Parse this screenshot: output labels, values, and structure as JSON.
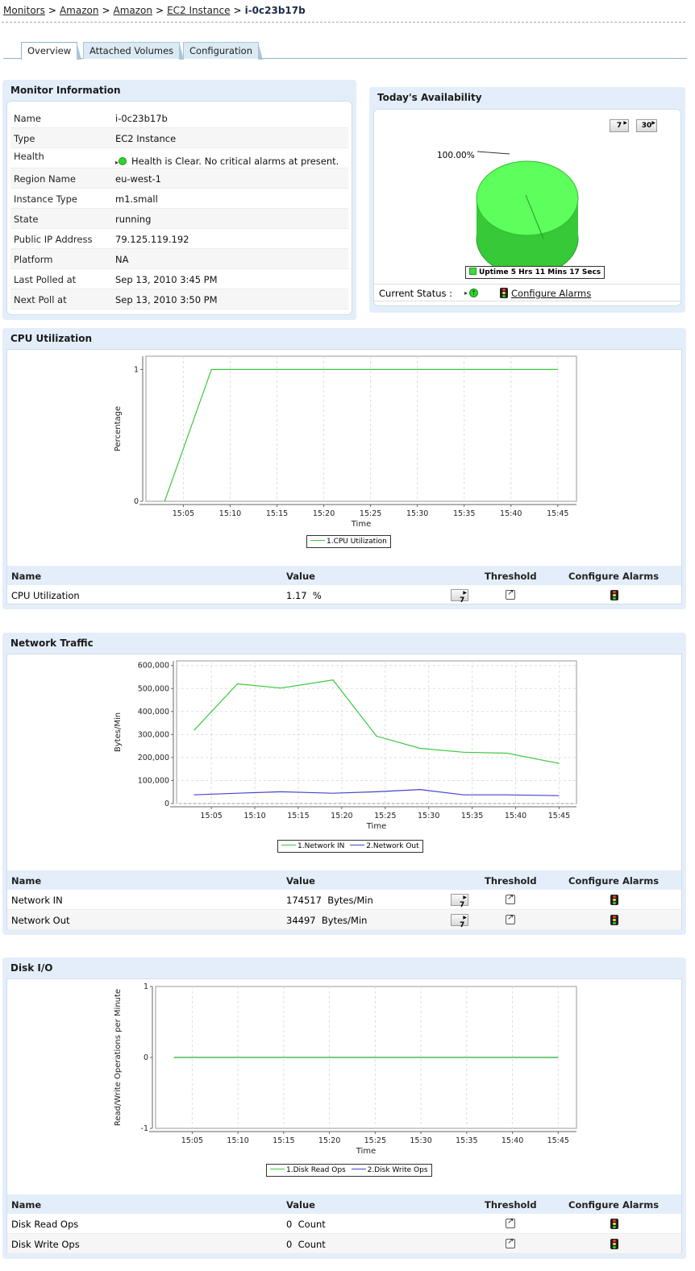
{
  "breadcrumb": {
    "items": [
      "Monitors",
      "Amazon",
      "Amazon",
      "EC2 Instance"
    ],
    "current": "i-0c23b17b",
    "separator": ">"
  },
  "tabs": [
    "Overview",
    "Attached Volumes",
    "Configuration"
  ],
  "monitor_info": {
    "title": "Monitor Information",
    "rows": [
      {
        "key": "Name",
        "value": "i-0c23b17b"
      },
      {
        "key": "Type",
        "value": "EC2 Instance"
      },
      {
        "key": "Health",
        "value": "Health is Clear. No critical alarms at present."
      },
      {
        "key": "Region Name",
        "value": "eu-west-1"
      },
      {
        "key": "Instance Type",
        "value": "m1.small"
      },
      {
        "key": "State",
        "value": "running"
      },
      {
        "key": "Public IP Address",
        "value": "79.125.119.192"
      },
      {
        "key": "Platform",
        "value": "NA"
      },
      {
        "key": "Last Polled at",
        "value": "Sep 13, 2010 3:45 PM"
      },
      {
        "key": "Next Poll at",
        "value": "Sep 13, 2010 3:50 PM"
      }
    ]
  },
  "availability": {
    "title": "Today's Availability",
    "btn_7": "7",
    "btn_30": "30",
    "pie_label": "100.00%",
    "uptime_legend": "Uptime 5 Hrs 11 Mins 17 Secs",
    "current_status_label": "Current Status :",
    "configure_alarms": "Configure Alarms",
    "pie_color": "#5cff5c"
  },
  "sections": {
    "cpu": {
      "title": "CPU Utilization",
      "ylabel": "Percentage",
      "xlabel": "Time",
      "legend": [
        "1.CPU Utilization"
      ],
      "table_headers": [
        "Name",
        "Value",
        "Threshold",
        "Configure Alarms"
      ],
      "rows": [
        {
          "name": "CPU Utilization",
          "value": "1.17",
          "unit": "%",
          "btn": "7"
        }
      ]
    },
    "network": {
      "title": "Network Traffic",
      "ylabel": "Bytes/Min",
      "xlabel": "Time",
      "legend": [
        "1.Network IN",
        "2.Network Out"
      ],
      "table_headers": [
        "Name",
        "Value",
        "Threshold",
        "Configure Alarms"
      ],
      "rows": [
        {
          "name": "Network IN",
          "value": "174517",
          "unit": "Bytes/Min",
          "btn": "7"
        },
        {
          "name": "Network Out",
          "value": "34497",
          "unit": "Bytes/Min",
          "btn": "7"
        }
      ]
    },
    "disk": {
      "title": "Disk I/O",
      "ylabel": "Read/Write Operations per Minute",
      "xlabel": "Time",
      "legend": [
        "1.Disk Read Ops",
        "2.Disk Write Ops"
      ],
      "table_headers": [
        "Name",
        "Value",
        "Threshold",
        "Configure Alarms"
      ],
      "rows": [
        {
          "name": "Disk Read Ops",
          "value": "0",
          "unit": "Count"
        },
        {
          "name": "Disk Write Ops",
          "value": "0",
          "unit": "Count"
        }
      ]
    }
  },
  "chart_data": [
    {
      "type": "pie",
      "title": "",
      "slices": [
        {
          "label": "Uptime",
          "value": 100.0,
          "color": "#5cff5c"
        }
      ]
    },
    {
      "type": "line",
      "xlabel": "Time",
      "ylabel": "Percentage",
      "x_ticks": [
        "15:05",
        "15:10",
        "15:15",
        "15:20",
        "15:25",
        "15:30",
        "15:35",
        "15:40",
        "15:45"
      ],
      "y_ticks": [
        0,
        1
      ],
      "ylim": [
        0,
        1.1
      ],
      "series": [
        {
          "name": "1.CPU Utilization",
          "color": "#3cc83c",
          "x": [
            "15:03",
            "15:08",
            "15:13",
            "15:18",
            "15:23",
            "15:28",
            "15:33",
            "15:38",
            "15:45"
          ],
          "y": [
            0,
            1,
            1,
            1,
            1,
            1,
            1,
            1,
            1
          ]
        }
      ]
    },
    {
      "type": "line",
      "xlabel": "Time",
      "ylabel": "Bytes/Min",
      "x_ticks": [
        "15:05",
        "15:10",
        "15:15",
        "15:20",
        "15:25",
        "15:30",
        "15:35",
        "15:40",
        "15:45"
      ],
      "y_ticks": [
        "0",
        "100,000",
        "200,000",
        "300,000",
        "400,000",
        "500,000",
        "600,000"
      ],
      "ylim": [
        0,
        620000
      ],
      "series": [
        {
          "name": "1.Network IN",
          "color": "#3cc83c",
          "x": [
            "15:03",
            "15:08",
            "15:13",
            "15:19",
            "15:24",
            "15:29",
            "15:34",
            "15:39",
            "15:45"
          ],
          "y": [
            318000,
            520000,
            502000,
            537000,
            293000,
            240000,
            223000,
            219000,
            174517
          ]
        },
        {
          "name": "2.Network Out",
          "color": "#4444cc",
          "x": [
            "15:03",
            "15:08",
            "15:13",
            "15:19",
            "15:24",
            "15:29",
            "15:34",
            "15:39",
            "15:45"
          ],
          "y": [
            38000,
            45000,
            51000,
            45000,
            51000,
            61000,
            38000,
            38000,
            34497
          ]
        }
      ]
    },
    {
      "type": "line",
      "xlabel": "Time",
      "ylabel": "Read/Write Operations per Minute",
      "x_ticks": [
        "15:05",
        "15:10",
        "15:15",
        "15:20",
        "15:25",
        "15:30",
        "15:35",
        "15:40",
        "15:45"
      ],
      "y_ticks": [
        -1,
        0,
        1
      ],
      "ylim": [
        -1,
        1
      ],
      "series": [
        {
          "name": "1.Disk Read Ops",
          "color": "#3cc83c",
          "x": [
            "15:03",
            "15:45"
          ],
          "y": [
            0,
            0
          ]
        },
        {
          "name": "2.Disk Write Ops",
          "color": "#4444cc",
          "x": [
            "15:03",
            "15:45"
          ],
          "y": [
            0,
            0
          ]
        }
      ]
    }
  ]
}
